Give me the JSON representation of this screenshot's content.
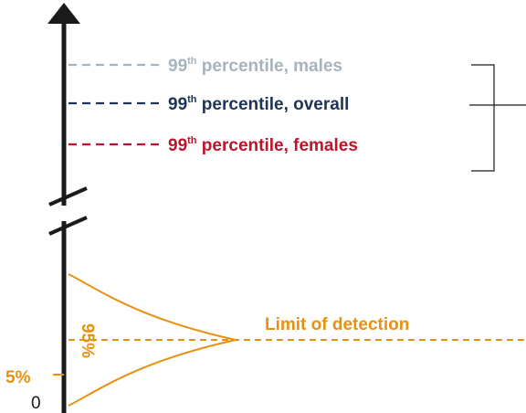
{
  "colors": {
    "axis": "#1a1a1a",
    "males": "#a6b4bd",
    "overall": "#1c3557",
    "females": "#c0122b",
    "detection": "#e8910f",
    "bracket": "#1a1a1a"
  },
  "icons": {
    "axis_arrow": "arrow-up-icon",
    "axis_break": "axis-break-icon"
  },
  "percentiles": [
    {
      "key": "males",
      "number": "99",
      "suffix": "th",
      "text": " percentile, males"
    },
    {
      "key": "overall",
      "number": "99",
      "suffix": "th",
      "text": " percentile, overall"
    },
    {
      "key": "females",
      "number": "99",
      "suffix": "th",
      "text": " percentile, females"
    }
  ],
  "distribution": {
    "coverage_label": "95%",
    "lower_tail_label": "5%",
    "limit_label": "Limit of detection"
  },
  "axis": {
    "zero_label": "0"
  }
}
